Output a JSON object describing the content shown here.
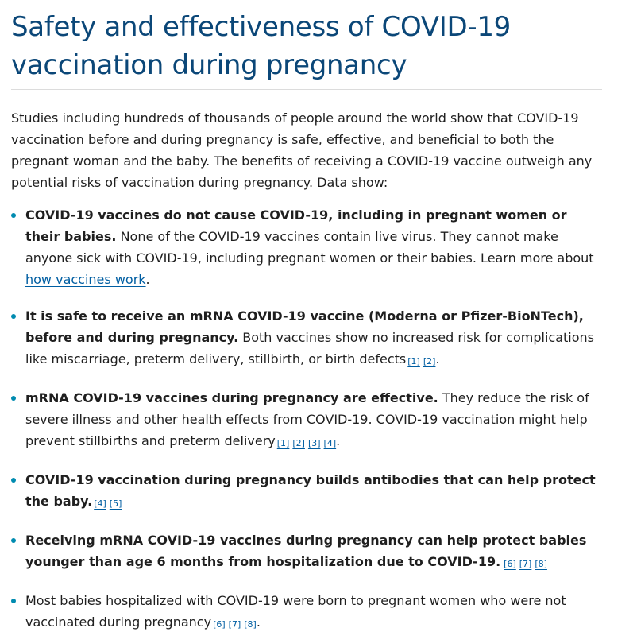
{
  "title": "Safety and effectiveness of COVID-19 vaccination during pregnancy",
  "intro": "Studies including hundreds of thousands of people around the world show that COVID-19 vaccination before and during pregnancy is safe, effective, and beneficial to both the pregnant woman and the baby. The benefits of receiving a COVID-19 vaccine outweigh any potential risks of vaccination during pregnancy. Data show:",
  "items": [
    {
      "bold": "COVID-19 vaccines do not cause COVID-19, including in pregnant women or their babies.",
      "text": " None of the COVID-19 vaccines contain live virus. They cannot make anyone sick with COVID-19, including pregnant women or their babies. Learn more about ",
      "link": "how vaccines work",
      "after": "."
    },
    {
      "bold": "It is safe to receive an mRNA COVID-19 vaccine (Moderna or Pfizer-BioNTech), before and during pregnancy.",
      "text": " Both vaccines show no increased risk for complications like miscarriage, preterm delivery, stillbirth, or birth defects",
      "refs": [
        "[1]",
        "[2]"
      ],
      "after": "."
    },
    {
      "bold": "mRNA COVID-19 vaccines during pregnancy are effective.",
      "text": " They reduce the risk of severe illness and other health effects from COVID-19. COVID-19 vaccination might help prevent stillbirths and preterm delivery",
      "refs": [
        "[1]",
        "[2]",
        "[3]",
        "[4]"
      ],
      "after": "."
    },
    {
      "bold": "COVID-19 vaccination during pregnancy builds antibodies that can help protect the baby.",
      "refs": [
        "[4]",
        "[5]"
      ]
    },
    {
      "bold": "Receiving mRNA COVID-19 vaccines during pregnancy can help protect babies younger than age 6 months from hospitalization due to COVID-19.",
      "refs": [
        "[6]",
        "[7]",
        "[8]"
      ]
    },
    {
      "text": "Most babies hospitalized with COVID-19 were born to pregnant women who were not vaccinated during pregnancy",
      "refs": [
        "[6]",
        "[7]",
        "[8]"
      ],
      "after": "."
    }
  ]
}
